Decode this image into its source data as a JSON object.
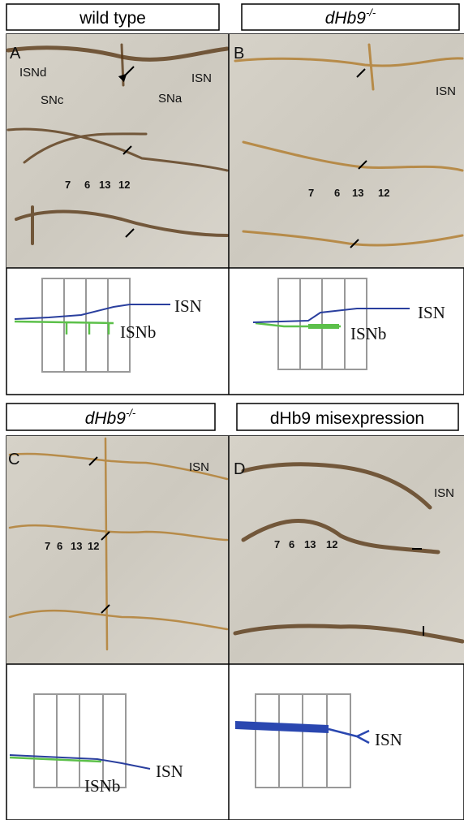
{
  "panels": [
    {
      "title": "wild type",
      "letter": "A",
      "labels": [
        "ISNd",
        "SNc",
        "SNa",
        "ISN"
      ],
      "muscles": [
        "7",
        "6",
        "13",
        "12"
      ],
      "diagram_labels": [
        "ISN",
        "ISNb"
      ]
    },
    {
      "title": "dHb9",
      "title_sup": "-/-",
      "letter": "B",
      "labels": [
        "ISN"
      ],
      "muscles": [
        "7",
        "6",
        "13",
        "12"
      ],
      "diagram_labels": [
        "ISN",
        "ISNb"
      ]
    },
    {
      "title": "dHb9",
      "title_sup": "-/-",
      "letter": "C",
      "labels": [
        "ISN"
      ],
      "muscles": [
        "7",
        "6",
        "13",
        "12"
      ],
      "diagram_labels": [
        "ISN",
        "ISNb"
      ]
    },
    {
      "title": "dHb9 misexpression",
      "letter": "D",
      "labels": [
        "ISN"
      ],
      "muscles": [
        "7",
        "6",
        "13",
        "12"
      ],
      "diagram_labels": [
        "ISN"
      ]
    }
  ]
}
